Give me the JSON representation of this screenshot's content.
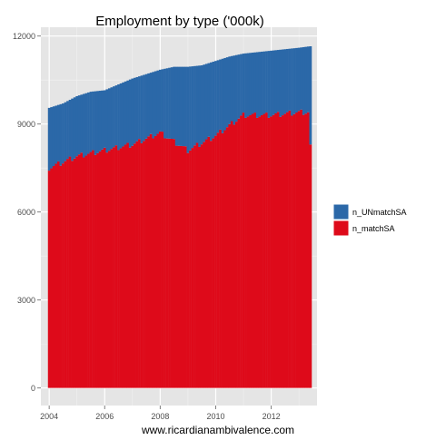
{
  "chart_data": {
    "type": "bar",
    "stacked": true,
    "title": "Employment by type ('000k)",
    "caption": "www.ricardianambivalence.com",
    "xlabel": "",
    "ylabel": "",
    "xlim": [
      2003.7,
      2013.65
    ],
    "ylim": [
      -600,
      12300
    ],
    "x_ticks": [
      2004,
      2006,
      2008,
      2010,
      2012
    ],
    "x_tick_labels": [
      "2004",
      "2006",
      "2008",
      "2010",
      "2012"
    ],
    "y_ticks": [
      0,
      3000,
      6000,
      9000,
      12000
    ],
    "y_tick_labels": [
      "0",
      "3000",
      "6000",
      "9000",
      "12000"
    ],
    "grid": true,
    "legend_position": "right",
    "colors": {
      "panel_background": "#e5e5e5",
      "grid_major": "#ffffff",
      "grid_minor": "#f2f2f2",
      "n_matchSA": "#de0a1a",
      "n_UNmatchSA": "#2b68a8"
    },
    "series_order_bottom_to_top": [
      "n_matchSA",
      "n_UNmatchSA"
    ],
    "series": [
      {
        "name": "n_UNmatchSA",
        "color": "#2b68a8",
        "x": [
          2004.0,
          2005.0,
          2006.0,
          2007.0,
          2008.0,
          2009.0,
          2010.0,
          2011.0,
          2012.0,
          2013.0
        ],
        "values": [
          2050,
          2100,
          2100,
          2100,
          2100,
          2800,
          2300,
          2100,
          2100,
          2200
        ]
      },
      {
        "name": "n_matchSA",
        "color": "#de0a1a",
        "x": [
          2004.0,
          2005.0,
          2006.0,
          2007.0,
          2008.0,
          2009.0,
          2010.0,
          2011.0,
          2012.0,
          2013.0
        ],
        "values": [
          7500,
          7900,
          8100,
          8300,
          8700,
          8100,
          8600,
          9300,
          9300,
          9400
        ]
      }
    ],
    "stack_totals": {
      "x": [
        2004.0,
        2004.5,
        2005.0,
        2005.5,
        2006.0,
        2006.5,
        2007.0,
        2007.5,
        2008.0,
        2008.5,
        2009.0,
        2009.5,
        2010.0,
        2010.5,
        2011.0,
        2011.5,
        2012.0,
        2012.5,
        2013.0,
        2013.4
      ],
      "values": [
        9550,
        9700,
        9950,
        10100,
        10150,
        10350,
        10550,
        10700,
        10850,
        10950,
        10950,
        11000,
        11150,
        11300,
        11400,
        11450,
        11500,
        11550,
        11600,
        11650
      ]
    }
  }
}
